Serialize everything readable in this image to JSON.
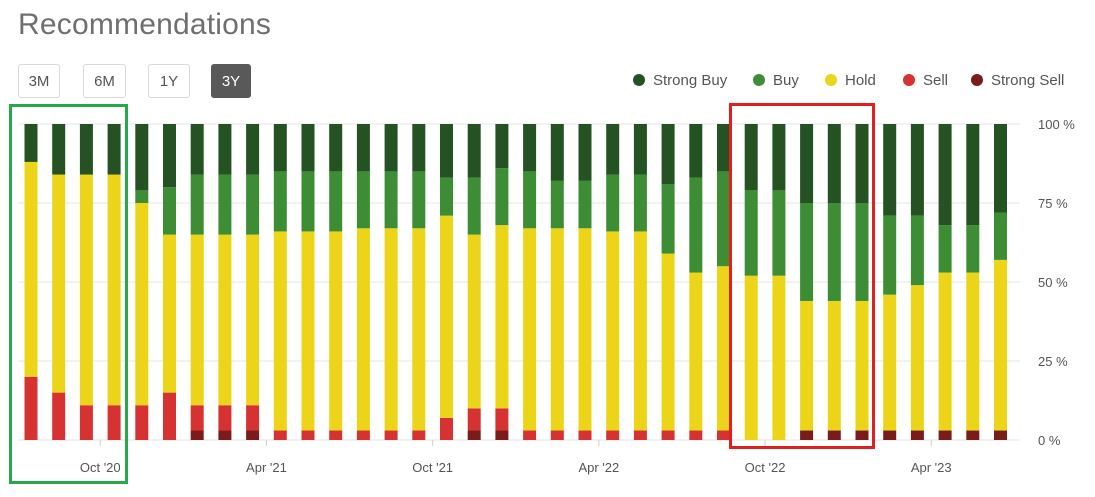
{
  "header": {
    "title": "Recommendations"
  },
  "range_buttons": [
    {
      "label": "3M",
      "active": false
    },
    {
      "label": "6M",
      "active": false
    },
    {
      "label": "1Y",
      "active": false
    },
    {
      "label": "3Y",
      "active": true
    }
  ],
  "colors": {
    "strong_buy": "#245222",
    "buy": "#3c8d34",
    "hold": "#ecd518",
    "sell": "#d63232",
    "strong_sell": "#7a1c1c",
    "highlight_green": "#27a84a",
    "highlight_red": "#e02020"
  },
  "chart_data": {
    "type": "bar",
    "stacked": true,
    "title": "",
    "xlabel": "",
    "ylabel": "",
    "ylim": [
      0,
      100
    ],
    "y_ticks": [
      "0 %",
      "25 %",
      "50 %",
      "75 %",
      "100 %"
    ],
    "x_tick_labels": [
      {
        "label": "Oct '20",
        "after_bar": 2
      },
      {
        "label": "Apr '21",
        "after_bar": 8
      },
      {
        "label": "Oct '21",
        "after_bar": 14
      },
      {
        "label": "Apr '22",
        "after_bar": 20
      },
      {
        "label": "Oct '22",
        "after_bar": 26
      },
      {
        "label": "Apr '23",
        "after_bar": 32
      }
    ],
    "legend": [
      "Strong Buy",
      "Buy",
      "Hold",
      "Sell",
      "Strong Sell"
    ],
    "legend_position": "top-right",
    "series": [
      {
        "name": "Strong Sell",
        "key": "strong_sell",
        "values": [
          0,
          0,
          0,
          0,
          0,
          0,
          3,
          3,
          3,
          0,
          0,
          0,
          0,
          0,
          0,
          0,
          3,
          3,
          0,
          0,
          0,
          0,
          0,
          0,
          0,
          0,
          0,
          0,
          3,
          3,
          3,
          3,
          3,
          3,
          3,
          3
        ]
      },
      {
        "name": "Sell",
        "key": "sell",
        "values": [
          20,
          15,
          11,
          11,
          11,
          15,
          8,
          8,
          8,
          3,
          3,
          3,
          3,
          3,
          3,
          7,
          7,
          7,
          3,
          3,
          3,
          3,
          3,
          3,
          3,
          3,
          0,
          0,
          0,
          0,
          0,
          0,
          0,
          0,
          0,
          0
        ]
      },
      {
        "name": "Hold",
        "key": "hold",
        "values": [
          68,
          69,
          73,
          73,
          64,
          50,
          54,
          54,
          54,
          63,
          63,
          63,
          64,
          64,
          64,
          64,
          55,
          58,
          64,
          64,
          64,
          63,
          63,
          56,
          50,
          52,
          52,
          52,
          41,
          41,
          41,
          43,
          46,
          50,
          50,
          54
        ]
      },
      {
        "name": "Buy",
        "key": "buy",
        "values": [
          0,
          0,
          0,
          0,
          4,
          15,
          19,
          19,
          19,
          19,
          19,
          19,
          18,
          18,
          18,
          12,
          18,
          18,
          18,
          15,
          15,
          18,
          18,
          22,
          30,
          30,
          27,
          27,
          31,
          31,
          31,
          25,
          22,
          15,
          15,
          15
        ]
      },
      {
        "name": "Strong Buy",
        "key": "strong_buy",
        "values": [
          12,
          16,
          16,
          16,
          21,
          20,
          16,
          16,
          16,
          15,
          15,
          15,
          15,
          15,
          15,
          17,
          17,
          14,
          15,
          18,
          18,
          16,
          16,
          19,
          17,
          15,
          21,
          21,
          25,
          25,
          25,
          29,
          29,
          32,
          32,
          28
        ]
      }
    ],
    "highlights": [
      {
        "name": "green-box",
        "from_bar": 0,
        "to_bar": 3,
        "color_key": "highlight_green"
      },
      {
        "name": "red-box",
        "from_bar": 26,
        "to_bar": 30,
        "color_key": "highlight_red"
      }
    ]
  }
}
